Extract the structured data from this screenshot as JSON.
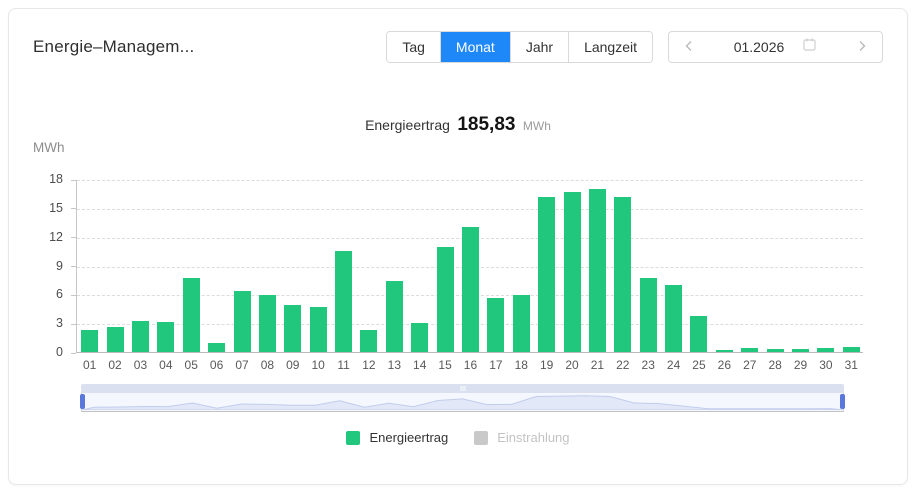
{
  "header": {
    "title": "Energie–Managem...",
    "tabs": [
      {
        "label": "Tag",
        "active": false
      },
      {
        "label": "Monat",
        "active": true
      },
      {
        "label": "Jahr",
        "active": false
      },
      {
        "label": "Langzeit",
        "active": false
      }
    ],
    "date_picker": {
      "value": "01.2026"
    }
  },
  "chart_header": {
    "label": "Energieertrag",
    "value": "185,83",
    "unit": "MWh"
  },
  "chart_data": {
    "type": "bar",
    "title": "Energieertrag 185,83 MWh",
    "ylabel": "MWh",
    "categories": [
      "01",
      "02",
      "03",
      "04",
      "05",
      "06",
      "07",
      "08",
      "09",
      "10",
      "11",
      "12",
      "13",
      "14",
      "15",
      "16",
      "17",
      "18",
      "19",
      "20",
      "21",
      "22",
      "23",
      "24",
      "25",
      "26",
      "27",
      "28",
      "29",
      "30",
      "31"
    ],
    "values": [
      2.3,
      2.6,
      3.2,
      3.1,
      7.7,
      0.9,
      6.4,
      5.9,
      4.9,
      4.7,
      10.5,
      2.3,
      7.4,
      3.0,
      10.9,
      13.0,
      5.6,
      5.9,
      16.1,
      16.6,
      17.0,
      16.1,
      7.7,
      7.0,
      3.7,
      0.2,
      0.45,
      0.35,
      0.3,
      0.4,
      0.55
    ],
    "ylim": [
      0,
      18
    ],
    "yticks": [
      0,
      3,
      6,
      9,
      12,
      15,
      18
    ],
    "grid": "horizontal-dashed",
    "bar_color": "#20c77d",
    "legend_position": "bottom",
    "legend": [
      {
        "label": "Energieertrag",
        "color": "#20c77d",
        "active": true
      },
      {
        "label": "Einstrahlung",
        "color": "#c9c9c9",
        "active": false
      }
    ]
  },
  "colors": {
    "accent_blue": "#1f88f8",
    "bar_green": "#20c77d",
    "slider_handle_blue": "#5a78dc",
    "inactive_gray": "#c9c9c9"
  }
}
